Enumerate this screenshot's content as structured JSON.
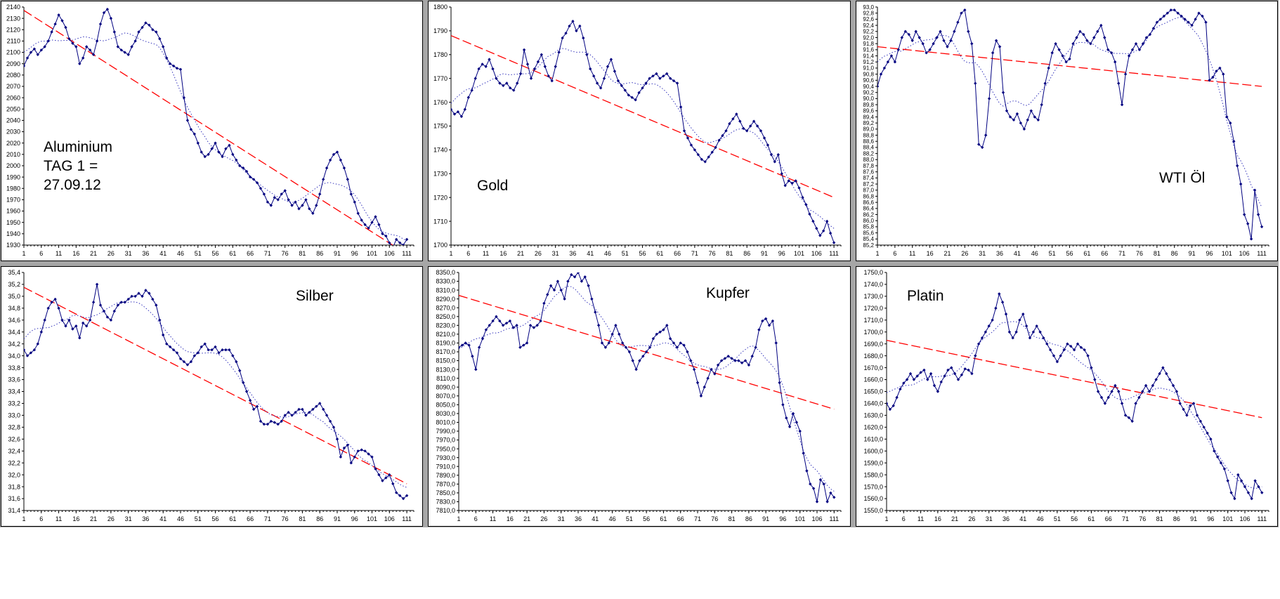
{
  "page": {
    "background": "#ffffff",
    "gap_color": "#a6a6a6"
  },
  "chart_data": [
    {
      "id": "aluminium",
      "type": "line",
      "title": "Aluminium",
      "annotation_lines": [
        "Aluminium",
        "TAG 1 =",
        "27.09.12"
      ],
      "annotation_pos": {
        "x": 0.1,
        "y": 0.58
      },
      "x_ticks": [
        1,
        6,
        11,
        16,
        21,
        26,
        31,
        36,
        41,
        46,
        51,
        56,
        61,
        66,
        71,
        76,
        81,
        86,
        91,
        96,
        101,
        106,
        111
      ],
      "x_axis_max": 113,
      "ylim": [
        1930,
        2140
      ],
      "y_step": 10,
      "y_decimals": 0,
      "y_comma": false,
      "grid": "off",
      "legend": "off",
      "colors": {
        "price": "#000080",
        "moving_average": "#3333bb",
        "trend": "#ff0000"
      },
      "series": [
        {
          "name": "price",
          "style": "solid-diamond",
          "values": [
            2088,
            2095,
            2100,
            2103,
            2098,
            2102,
            2105,
            2110,
            2118,
            2125,
            2133,
            2128,
            2122,
            2112,
            2108,
            2105,
            2090,
            2095,
            2105,
            2102,
            2098,
            2110,
            2125,
            2135,
            2138,
            2130,
            2118,
            2105,
            2102,
            2100,
            2098,
            2105,
            2110,
            2118,
            2122,
            2126,
            2124,
            2120,
            2118,
            2112,
            2105,
            2095,
            2090,
            2088,
            2086,
            2085,
            2060,
            2040,
            2032,
            2028,
            2020,
            2012,
            2008,
            2010,
            2015,
            2020,
            2012,
            2008,
            2015,
            2018,
            2010,
            2005,
            2000,
            1998,
            1995,
            1990,
            1988,
            1985,
            1980,
            1975,
            1968,
            1965,
            1972,
            1970,
            1975,
            1978,
            1970,
            1965,
            1968,
            1962,
            1965,
            1970,
            1962,
            1958,
            1965,
            1975,
            1988,
            1998,
            2005,
            2010,
            2012,
            2005,
            1998,
            1988,
            1975,
            1968,
            1958,
            1952,
            1948,
            1945,
            1950,
            1955,
            1948,
            1940,
            1938,
            1932,
            1928,
            1935,
            1932,
            1930,
            1935
          ]
        },
        {
          "name": "moving-average",
          "style": "dotted",
          "derived_from": "price",
          "window": 15
        },
        {
          "name": "linear-trend",
          "style": "dashed",
          "endpoints": [
            2137,
            1922
          ]
        }
      ]
    },
    {
      "id": "gold",
      "type": "line",
      "title": "Gold",
      "annotation_lines": [
        "Gold"
      ],
      "annotation_pos": {
        "x": 0.115,
        "y": 0.73
      },
      "x_ticks": [
        1,
        6,
        11,
        16,
        21,
        26,
        31,
        36,
        41,
        46,
        51,
        56,
        61,
        66,
        71,
        76,
        81,
        86,
        91,
        96,
        101,
        106,
        111
      ],
      "x_axis_max": 113,
      "ylim": [
        1700,
        1800
      ],
      "y_step": 10,
      "y_decimals": 0,
      "y_comma": false,
      "grid": "off",
      "legend": "off",
      "colors": {
        "price": "#000080",
        "moving_average": "#3333bb",
        "trend": "#ff0000"
      },
      "series": [
        {
          "name": "price",
          "style": "solid-diamond",
          "values": [
            1757,
            1755,
            1756,
            1754,
            1757,
            1762,
            1765,
            1770,
            1774,
            1776,
            1775,
            1778,
            1774,
            1770,
            1768,
            1767,
            1768,
            1766,
            1765,
            1768,
            1772,
            1782,
            1776,
            1770,
            1774,
            1777,
            1780,
            1775,
            1771,
            1769,
            1775,
            1781,
            1787,
            1789,
            1792,
            1794,
            1790,
            1792,
            1787,
            1780,
            1774,
            1771,
            1768,
            1766,
            1770,
            1775,
            1778,
            1773,
            1769,
            1767,
            1765,
            1763,
            1762,
            1761,
            1764,
            1766,
            1768,
            1770,
            1771,
            1772,
            1770,
            1771,
            1772,
            1770,
            1769,
            1768,
            1758,
            1748,
            1745,
            1742,
            1740,
            1738,
            1736,
            1735,
            1737,
            1739,
            1741,
            1744,
            1746,
            1748,
            1751,
            1753,
            1755,
            1752,
            1749,
            1748,
            1750,
            1752,
            1750,
            1748,
            1745,
            1742,
            1738,
            1735,
            1738,
            1730,
            1725,
            1727,
            1726,
            1727,
            1724,
            1720,
            1717,
            1713,
            1710,
            1707,
            1704,
            1706,
            1710,
            1705,
            1701
          ]
        },
        {
          "name": "moving-average",
          "style": "dotted",
          "derived_from": "price",
          "window": 15
        },
        {
          "name": "linear-trend",
          "style": "dashed",
          "endpoints": [
            1788,
            1720
          ]
        }
      ]
    },
    {
      "id": "wti",
      "type": "line",
      "title": "WTI Öl",
      "annotation_lines": [
        "WTI Öl"
      ],
      "annotation_pos": {
        "x": 0.72,
        "y": 0.7
      },
      "x_ticks": [
        1,
        6,
        11,
        16,
        21,
        26,
        31,
        36,
        41,
        46,
        51,
        56,
        61,
        66,
        71,
        76,
        81,
        86,
        91,
        96,
        101,
        106,
        111
      ],
      "x_axis_max": 113,
      "ylim": [
        85.2,
        93.0
      ],
      "y_step": 0.2,
      "y_decimals": 1,
      "y_comma": true,
      "grid": "off",
      "legend": "off",
      "colors": {
        "price": "#000080",
        "moving_average": "#3333bb",
        "trend": "#ff0000"
      },
      "series": [
        {
          "name": "price",
          "style": "solid-diamond",
          "values": [
            90.4,
            90.8,
            91.0,
            91.2,
            91.4,
            91.2,
            91.6,
            92.0,
            92.2,
            92.1,
            91.9,
            92.2,
            92.0,
            91.8,
            91.5,
            91.6,
            91.8,
            92.0,
            92.2,
            91.9,
            91.7,
            91.9,
            92.2,
            92.5,
            92.8,
            92.9,
            92.2,
            91.8,
            90.5,
            88.5,
            88.4,
            88.8,
            90.0,
            91.5,
            91.9,
            91.7,
            90.2,
            89.6,
            89.4,
            89.3,
            89.5,
            89.2,
            89.0,
            89.3,
            89.6,
            89.4,
            89.3,
            89.8,
            90.5,
            91.0,
            91.5,
            91.8,
            91.6,
            91.4,
            91.2,
            91.3,
            91.8,
            92.0,
            92.2,
            92.1,
            91.9,
            91.8,
            92.0,
            92.2,
            92.4,
            92.0,
            91.6,
            91.5,
            91.2,
            90.5,
            89.8,
            90.8,
            91.4,
            91.6,
            91.8,
            91.6,
            91.8,
            92.0,
            92.1,
            92.3,
            92.5,
            92.6,
            92.7,
            92.8,
            92.9,
            92.9,
            92.8,
            92.7,
            92.6,
            92.5,
            92.4,
            92.6,
            92.8,
            92.7,
            92.5,
            90.6,
            90.7,
            90.9,
            91.0,
            90.8,
            89.4,
            89.2,
            88.6,
            87.8,
            87.2,
            86.2,
            85.9,
            85.4,
            87.0,
            86.2,
            85.8
          ]
        },
        {
          "name": "moving-average",
          "style": "dotted",
          "derived_from": "price",
          "window": 15
        },
        {
          "name": "linear-trend",
          "style": "dashed",
          "endpoints": [
            91.7,
            90.4
          ]
        }
      ]
    },
    {
      "id": "silber",
      "type": "line",
      "title": "Silber",
      "annotation_lines": [
        "Silber"
      ],
      "annotation_pos": {
        "x": 0.7,
        "y": 0.13
      },
      "x_ticks": [
        1,
        6,
        11,
        16,
        21,
        26,
        31,
        36,
        41,
        46,
        51,
        56,
        61,
        66,
        71,
        76,
        81,
        86,
        91,
        96,
        101,
        106,
        111
      ],
      "x_axis_max": 113,
      "ylim": [
        31.4,
        35.4
      ],
      "y_step": 0.2,
      "y_decimals": 1,
      "y_comma": true,
      "grid": "off",
      "legend": "off",
      "colors": {
        "price": "#000080",
        "moving_average": "#3333bb",
        "trend": "#ff0000"
      },
      "series": [
        {
          "name": "price",
          "style": "solid-diamond",
          "values": [
            34.1,
            34.0,
            34.05,
            34.1,
            34.2,
            34.4,
            34.6,
            34.8,
            34.9,
            34.95,
            34.8,
            34.6,
            34.5,
            34.6,
            34.45,
            34.5,
            34.3,
            34.55,
            34.5,
            34.6,
            34.9,
            35.2,
            34.85,
            34.75,
            34.65,
            34.6,
            34.75,
            34.85,
            34.9,
            34.9,
            34.95,
            35.0,
            35.0,
            35.05,
            35.0,
            35.1,
            35.05,
            34.95,
            34.85,
            34.6,
            34.35,
            34.2,
            34.15,
            34.1,
            34.05,
            33.95,
            33.9,
            33.85,
            33.9,
            34.0,
            34.05,
            34.15,
            34.2,
            34.1,
            34.1,
            34.15,
            34.05,
            34.1,
            34.1,
            34.1,
            34.0,
            33.9,
            33.75,
            33.55,
            33.4,
            33.25,
            33.1,
            33.15,
            32.9,
            32.85,
            32.85,
            32.9,
            32.88,
            32.85,
            32.9,
            33.0,
            33.05,
            33.0,
            33.05,
            33.1,
            33.1,
            33.0,
            33.05,
            33.1,
            33.15,
            33.2,
            33.1,
            33.0,
            32.9,
            32.8,
            32.6,
            32.3,
            32.45,
            32.5,
            32.2,
            32.3,
            32.4,
            32.42,
            32.4,
            32.35,
            32.3,
            32.1,
            32.0,
            31.9,
            31.95,
            32.0,
            31.85,
            31.7,
            31.65,
            31.6,
            31.65
          ]
        },
        {
          "name": "moving-average",
          "style": "dotted",
          "derived_from": "price",
          "window": 15
        },
        {
          "name": "linear-trend",
          "style": "dashed",
          "endpoints": [
            35.15,
            31.85
          ]
        }
      ]
    },
    {
      "id": "kupfer",
      "type": "line",
      "title": "Kupfer",
      "annotation_lines": [
        "Kupfer"
      ],
      "annotation_pos": {
        "x": 0.66,
        "y": 0.12
      },
      "x_ticks": [
        1,
        6,
        11,
        16,
        21,
        26,
        31,
        36,
        41,
        46,
        51,
        56,
        61,
        66,
        71,
        76,
        81,
        86,
        91,
        96,
        101,
        106,
        111
      ],
      "x_axis_max": 113,
      "ylim": [
        7810.0,
        8350.0
      ],
      "y_step": 20,
      "y_decimals": 1,
      "y_comma": true,
      "grid": "off",
      "legend": "off",
      "colors": {
        "price": "#000080",
        "moving_average": "#3333bb",
        "trend": "#ff0000"
      },
      "series": [
        {
          "name": "price",
          "style": "solid-diamond",
          "values": [
            8180,
            8185,
            8190,
            8185,
            8160,
            8130,
            8180,
            8200,
            8220,
            8230,
            8240,
            8250,
            8240,
            8230,
            8235,
            8240,
            8225,
            8230,
            8180,
            8185,
            8190,
            8230,
            8225,
            8230,
            8240,
            8280,
            8300,
            8320,
            8310,
            8330,
            8310,
            8290,
            8330,
            8345,
            8340,
            8350,
            8330,
            8340,
            8320,
            8290,
            8260,
            8230,
            8190,
            8180,
            8190,
            8210,
            8230,
            8210,
            8190,
            8180,
            8170,
            8150,
            8130,
            8150,
            8160,
            8170,
            8180,
            8200,
            8210,
            8215,
            8220,
            8230,
            8200,
            8190,
            8180,
            8190,
            8185,
            8170,
            8150,
            8130,
            8100,
            8070,
            8090,
            8110,
            8130,
            8120,
            8140,
            8150,
            8155,
            8160,
            8155,
            8150,
            8150,
            8145,
            8150,
            8140,
            8160,
            8180,
            8220,
            8240,
            8245,
            8230,
            8240,
            8190,
            8100,
            8050,
            8020,
            8000,
            8030,
            8010,
            7990,
            7940,
            7900,
            7870,
            7860,
            7830,
            7880,
            7870,
            7830,
            7850,
            7840
          ]
        },
        {
          "name": "moving-average",
          "style": "dotted",
          "derived_from": "price",
          "window": 15
        },
        {
          "name": "linear-trend",
          "style": "dashed",
          "endpoints": [
            8298,
            8040
          ]
        }
      ]
    },
    {
      "id": "platin",
      "type": "line",
      "title": "Platin",
      "annotation_lines": [
        "Platin"
      ],
      "annotation_pos": {
        "x": 0.12,
        "y": 0.13
      },
      "x_ticks": [
        1,
        6,
        11,
        16,
        21,
        26,
        31,
        36,
        41,
        46,
        51,
        56,
        61,
        66,
        71,
        76,
        81,
        86,
        91,
        96,
        101,
        106,
        111
      ],
      "x_axis_max": 113,
      "ylim": [
        1550.0,
        1750.0
      ],
      "y_step": 10,
      "y_decimals": 1,
      "y_comma": true,
      "grid": "off",
      "legend": "off",
      "colors": {
        "price": "#000080",
        "moving_average": "#3333bb",
        "trend": "#ff0000"
      },
      "series": [
        {
          "name": "price",
          "style": "solid-diamond",
          "values": [
            1640,
            1635,
            1638,
            1645,
            1652,
            1657,
            1660,
            1665,
            1660,
            1663,
            1666,
            1668,
            1660,
            1665,
            1655,
            1650,
            1658,
            1663,
            1668,
            1670,
            1665,
            1660,
            1664,
            1669,
            1668,
            1665,
            1680,
            1690,
            1695,
            1700,
            1705,
            1710,
            1720,
            1732,
            1725,
            1715,
            1700,
            1695,
            1700,
            1710,
            1715,
            1705,
            1695,
            1700,
            1705,
            1700,
            1695,
            1690,
            1685,
            1680,
            1675,
            1680,
            1685,
            1690,
            1688,
            1685,
            1690,
            1687,
            1685,
            1680,
            1670,
            1660,
            1650,
            1645,
            1640,
            1645,
            1650,
            1655,
            1650,
            1640,
            1630,
            1628,
            1625,
            1640,
            1645,
            1650,
            1655,
            1650,
            1655,
            1660,
            1665,
            1670,
            1665,
            1660,
            1655,
            1650,
            1640,
            1635,
            1630,
            1638,
            1640,
            1630,
            1625,
            1620,
            1615,
            1610,
            1600,
            1595,
            1590,
            1585,
            1575,
            1565,
            1560,
            1580,
            1575,
            1570,
            1565,
            1560,
            1575,
            1570,
            1565
          ]
        },
        {
          "name": "moving-average",
          "style": "dotted",
          "derived_from": "price",
          "window": 15
        },
        {
          "name": "linear-trend",
          "style": "dashed",
          "endpoints": [
            1693,
            1628
          ]
        }
      ]
    }
  ]
}
